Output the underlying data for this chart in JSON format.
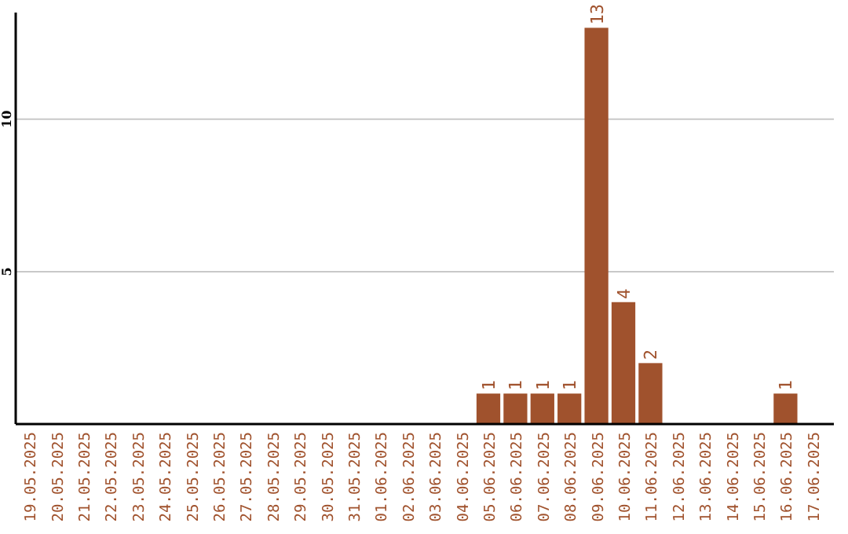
{
  "chart_data": {
    "type": "bar",
    "categories": [
      "19.05.2025",
      "20.05.2025",
      "21.05.2025",
      "22.05.2025",
      "23.05.2025",
      "24.05.2025",
      "25.05.2025",
      "26.05.2025",
      "27.05.2025",
      "28.05.2025",
      "29.05.2025",
      "30.05.2025",
      "31.05.2025",
      "01.06.2025",
      "02.06.2025",
      "03.06.2025",
      "04.06.2025",
      "05.06.2025",
      "06.06.2025",
      "07.06.2025",
      "08.06.2025",
      "09.06.2025",
      "10.06.2025",
      "11.06.2025",
      "12.06.2025",
      "13.06.2025",
      "14.06.2025",
      "15.06.2025",
      "16.06.2025",
      "17.06.2025"
    ],
    "values": [
      0,
      0,
      0,
      0,
      0,
      0,
      0,
      0,
      0,
      0,
      0,
      0,
      0,
      0,
      0,
      0,
      0,
      1,
      1,
      1,
      1,
      13,
      4,
      2,
      0,
      0,
      0,
      0,
      1,
      0
    ],
    "value_labels": [
      null,
      null,
      null,
      null,
      null,
      null,
      null,
      null,
      null,
      null,
      null,
      null,
      null,
      null,
      null,
      null,
      null,
      "1",
      "1",
      "1",
      "1",
      "13",
      "4",
      "2",
      null,
      null,
      null,
      null,
      "1",
      null
    ],
    "color": "#a0522d",
    "ylim": [
      0,
      13.5
    ],
    "yticks": [
      5,
      10
    ],
    "grid": "y"
  }
}
